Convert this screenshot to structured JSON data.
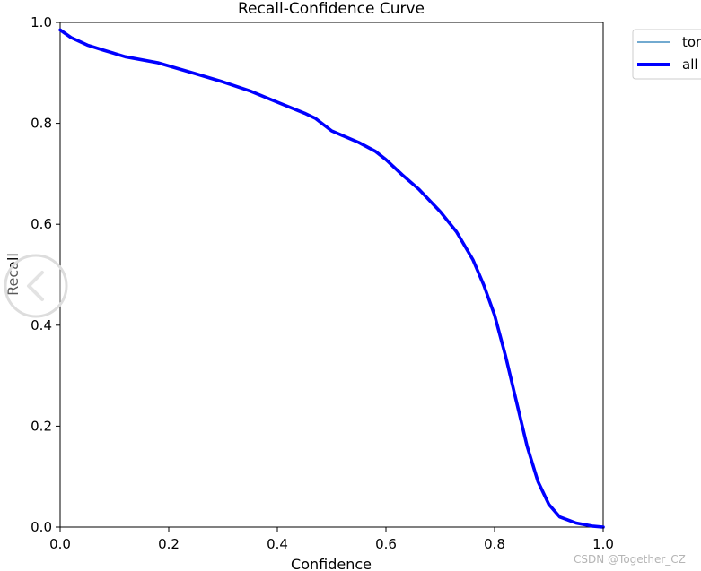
{
  "chart_data": {
    "type": "line",
    "title": "Recall-Confidence Curve",
    "xlabel": "Confidence",
    "ylabel": "Recall",
    "xlim": [
      0.0,
      1.0
    ],
    "ylim": [
      0.0,
      1.0
    ],
    "xticks": [
      "0.0",
      "0.2",
      "0.4",
      "0.6",
      "0.8",
      "1.0"
    ],
    "yticks": [
      "0.0",
      "0.2",
      "0.4",
      "0.6",
      "0.8",
      "1.0"
    ],
    "grid": false,
    "legend_position": "outside-top-right",
    "series": [
      {
        "name": "tom",
        "color": "#1f77b4",
        "x": [
          0.0,
          0.02,
          0.05,
          0.08,
          0.12,
          0.18,
          0.25,
          0.3,
          0.35,
          0.4,
          0.45,
          0.47,
          0.5,
          0.55,
          0.58,
          0.6,
          0.63,
          0.66,
          0.7,
          0.73,
          0.76,
          0.78,
          0.8,
          0.82,
          0.84,
          0.86,
          0.88,
          0.9,
          0.92,
          0.95,
          0.98,
          1.0
        ],
        "y": [
          0.985,
          0.97,
          0.955,
          0.945,
          0.932,
          0.92,
          0.898,
          0.882,
          0.864,
          0.842,
          0.82,
          0.81,
          0.785,
          0.762,
          0.745,
          0.728,
          0.698,
          0.67,
          0.625,
          0.585,
          0.53,
          0.48,
          0.42,
          0.34,
          0.25,
          0.16,
          0.09,
          0.045,
          0.02,
          0.008,
          0.002,
          0.0
        ]
      },
      {
        "name": "all",
        "color": "#0000ff",
        "x": [
          0.0,
          0.02,
          0.05,
          0.08,
          0.12,
          0.18,
          0.25,
          0.3,
          0.35,
          0.4,
          0.45,
          0.47,
          0.5,
          0.55,
          0.58,
          0.6,
          0.63,
          0.66,
          0.7,
          0.73,
          0.76,
          0.78,
          0.8,
          0.82,
          0.84,
          0.86,
          0.88,
          0.9,
          0.92,
          0.95,
          0.98,
          1.0
        ],
        "y": [
          0.985,
          0.97,
          0.955,
          0.945,
          0.932,
          0.92,
          0.898,
          0.882,
          0.864,
          0.842,
          0.82,
          0.81,
          0.785,
          0.762,
          0.745,
          0.728,
          0.698,
          0.67,
          0.625,
          0.585,
          0.53,
          0.48,
          0.42,
          0.34,
          0.25,
          0.16,
          0.09,
          0.045,
          0.02,
          0.008,
          0.002,
          0.0
        ]
      }
    ]
  },
  "legend": {
    "items": [
      {
        "label": "tom",
        "color": "#1f77b4"
      },
      {
        "label": "all",
        "color": "#0000ff"
      }
    ]
  },
  "overlay": {
    "watermark": "CSDN @Together_CZ",
    "nav_icon": "chevron-left-icon"
  }
}
